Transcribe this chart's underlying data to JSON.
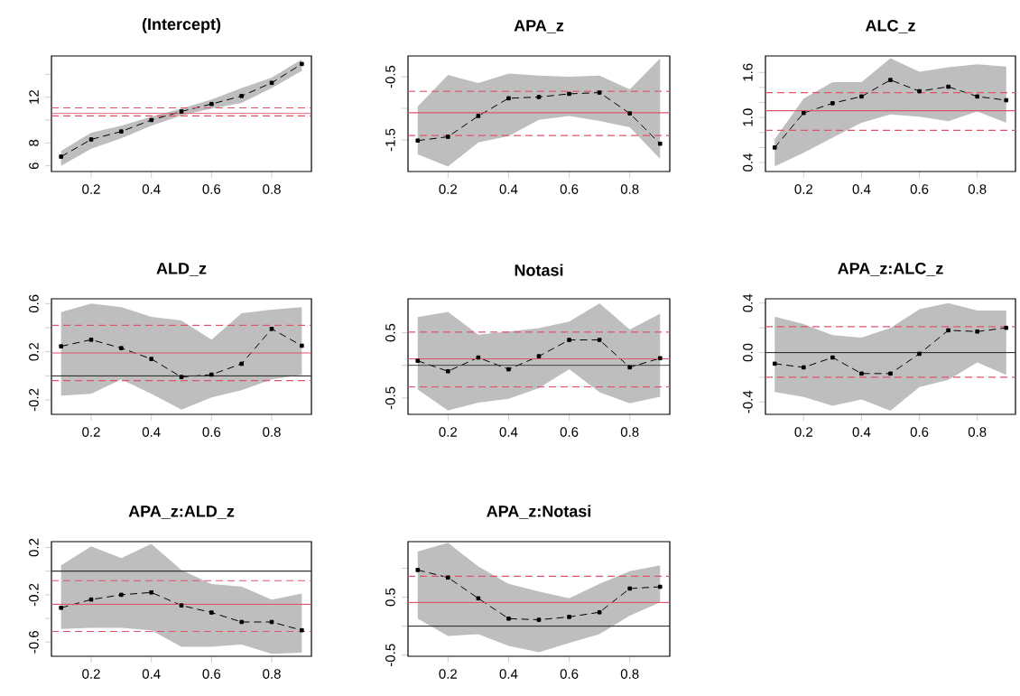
{
  "chart_data": [
    {
      "type": "line",
      "title": "(Intercept)",
      "x": [
        0.1,
        0.2,
        0.3,
        0.4,
        0.5,
        0.6,
        0.7,
        0.8,
        0.9
      ],
      "marker": "square",
      "line_style": "dashed",
      "series": [
        {
          "color": "#000000",
          "values": [
            6.8,
            8.3,
            9.0,
            10.0,
            10.75,
            11.4,
            12.1,
            13.25,
            14.9
          ],
          "lower": [
            6.0,
            7.5,
            8.4,
            9.5,
            10.4,
            11.0,
            11.5,
            12.8,
            14.3
          ],
          "upper": [
            7.3,
            8.9,
            9.5,
            10.3,
            11.0,
            11.8,
            12.8,
            13.7,
            15.3
          ]
        }
      ],
      "xlim": [
        0.068,
        0.932
      ],
      "ylim": [
        5.5,
        15.6
      ],
      "xticks": [
        0.2,
        0.4,
        0.6,
        0.8
      ],
      "yticks": [
        6,
        8,
        {
          "value": 10,
          "label": null
        },
        12,
        {
          "value": 14,
          "label": null
        }
      ],
      "ref_lines": [
        {
          "axis": "y",
          "value": 10.57,
          "color": "#df536b",
          "line_style": "solid"
        },
        {
          "axis": "y",
          "value": 11.06,
          "color": "#df536b",
          "line_style": "dashed"
        },
        {
          "axis": "y",
          "value": 10.36,
          "color": "#df536b",
          "line_style": "dashed"
        }
      ]
    },
    {
      "type": "line",
      "title": "APA_z",
      "x": [
        0.1,
        0.2,
        0.3,
        0.4,
        0.5,
        0.6,
        0.7,
        0.8,
        0.9
      ],
      "marker": "square",
      "line_style": "dashed",
      "series": [
        {
          "color": "#000000",
          "values": [
            -1.51,
            -1.45,
            -1.12,
            -0.84,
            -0.82,
            -0.77,
            -0.75,
            -1.08,
            -1.56
          ],
          "lower": [
            -1.73,
            -1.92,
            -1.54,
            -1.44,
            -1.18,
            -1.12,
            -1.2,
            -1.3,
            -1.8
          ],
          "upper": [
            -0.97,
            -0.47,
            -0.6,
            -0.45,
            -0.48,
            -0.5,
            -0.48,
            -0.7,
            -0.21
          ]
        }
      ],
      "xlim": [
        0.068,
        0.932
      ],
      "ylim": [
        -2.0,
        -0.17
      ],
      "xticks": [
        0.2,
        0.4,
        0.6,
        0.8
      ],
      "yticks": [
        -1.5,
        {
          "value": -1.0,
          "label": null
        },
        -0.5
      ],
      "ref_lines": [
        {
          "axis": "y",
          "value": -1.07,
          "color": "#df536b",
          "line_style": "solid"
        },
        {
          "axis": "y",
          "value": -0.73,
          "color": "#df536b",
          "line_style": "dashed"
        },
        {
          "axis": "y",
          "value": -1.43,
          "color": "#df536b",
          "line_style": "dashed"
        }
      ]
    },
    {
      "type": "line",
      "title": "ALC_z",
      "x": [
        0.1,
        0.2,
        0.3,
        0.4,
        0.5,
        0.6,
        0.7,
        0.8,
        0.9
      ],
      "marker": "square",
      "line_style": "dashed",
      "series": [
        {
          "color": "#000000",
          "values": [
            0.6,
            1.06,
            1.19,
            1.28,
            1.5,
            1.35,
            1.41,
            1.28,
            1.23
          ],
          "lower": [
            0.35,
            0.53,
            0.73,
            0.93,
            1.04,
            1.01,
            0.95,
            1.08,
            0.93
          ],
          "upper": [
            0.71,
            1.25,
            1.47,
            1.47,
            1.79,
            1.61,
            1.67,
            1.71,
            1.68
          ]
        }
      ],
      "xlim": [
        0.068,
        0.932
      ],
      "ylim": [
        0.28,
        1.82
      ],
      "xticks": [
        0.2,
        0.4,
        0.6,
        0.8
      ],
      "yticks": [
        0.4,
        {
          "value": 0.6,
          "label": null
        },
        {
          "value": 0.8,
          "label": null
        },
        {
          "value": 1.0,
          "label": "1.0"
        },
        {
          "value": 1.2,
          "label": null
        },
        {
          "value": 1.4,
          "label": null
        },
        1.6
      ],
      "ref_lines": [
        {
          "axis": "y",
          "value": 1.09,
          "color": "#df536b",
          "line_style": "solid"
        },
        {
          "axis": "y",
          "value": 1.33,
          "color": "#df536b",
          "line_style": "dashed"
        },
        {
          "axis": "y",
          "value": 0.83,
          "color": "#df536b",
          "line_style": "dashed"
        }
      ]
    },
    {
      "type": "line",
      "title": "ALD_z",
      "x": [
        0.1,
        0.2,
        0.3,
        0.4,
        0.5,
        0.6,
        0.7,
        0.8,
        0.9
      ],
      "marker": "square",
      "line_style": "dashed",
      "series": [
        {
          "color": "#000000",
          "values": [
            0.245,
            0.3,
            0.23,
            0.14,
            -0.01,
            0.01,
            0.1,
            0.39,
            0.25
          ],
          "lower": [
            -0.165,
            -0.15,
            -0.03,
            -0.15,
            -0.28,
            -0.18,
            -0.12,
            -0.03,
            0.01
          ],
          "upper": [
            0.53,
            0.6,
            0.57,
            0.49,
            0.46,
            0.3,
            0.52,
            0.55,
            0.57
          ]
        }
      ],
      "xlim": [
        0.068,
        0.932
      ],
      "ylim": [
        -0.32,
        0.64
      ],
      "xticks": [
        0.2,
        0.4,
        0.6,
        0.8
      ],
      "yticks": [
        -0.2,
        {
          "value": 0.0,
          "label": null
        },
        0.2,
        {
          "value": 0.4,
          "label": null
        },
        0.6
      ],
      "ref_lines": [
        {
          "axis": "y",
          "value": 0.19,
          "color": "#df536b",
          "line_style": "solid"
        },
        {
          "axis": "y",
          "value": 0.42,
          "color": "#df536b",
          "line_style": "dashed"
        },
        {
          "axis": "y",
          "value": -0.04,
          "color": "#df536b",
          "line_style": "dashed"
        },
        {
          "axis": "y",
          "value": 0,
          "color": "#333333",
          "line_style": "solid"
        }
      ]
    },
    {
      "type": "line",
      "title": "Notasi",
      "x": [
        0.1,
        0.2,
        0.3,
        0.4,
        0.5,
        0.6,
        0.7,
        0.8,
        0.9
      ],
      "marker": "square",
      "line_style": "dashed",
      "series": [
        {
          "color": "#000000",
          "values": [
            0.07,
            -0.09,
            0.12,
            -0.06,
            0.14,
            0.39,
            0.39,
            -0.03,
            0.11
          ],
          "lower": [
            -0.37,
            -0.69,
            -0.57,
            -0.51,
            -0.35,
            -0.06,
            -0.41,
            -0.58,
            -0.48
          ],
          "upper": [
            0.74,
            0.82,
            0.47,
            0.52,
            0.57,
            0.67,
            0.95,
            0.55,
            0.79
          ]
        }
      ],
      "xlim": [
        0.068,
        0.932
      ],
      "ylim": [
        -0.75,
        1.02
      ],
      "xticks": [
        0.2,
        0.4,
        0.6,
        0.8
      ],
      "yticks": [
        -0.5,
        {
          "value": 0.0,
          "label": null
        },
        0.5
      ],
      "ref_lines": [
        {
          "axis": "y",
          "value": 0.1,
          "color": "#df536b",
          "line_style": "solid"
        },
        {
          "axis": "y",
          "value": 0.51,
          "color": "#df536b",
          "line_style": "dashed"
        },
        {
          "axis": "y",
          "value": -0.33,
          "color": "#df536b",
          "line_style": "dashed"
        },
        {
          "axis": "y",
          "value": 0,
          "color": "#333333",
          "line_style": "solid"
        }
      ]
    },
    {
      "type": "line",
      "title": "APA_z:ALC_z",
      "x": [
        0.1,
        0.2,
        0.3,
        0.4,
        0.5,
        0.6,
        0.7,
        0.8,
        0.9
      ],
      "marker": "square",
      "line_style": "dashed",
      "series": [
        {
          "color": "#000000",
          "values": [
            -0.09,
            -0.12,
            -0.04,
            -0.17,
            -0.17,
            -0.01,
            0.18,
            0.17,
            0.2
          ],
          "lower": [
            -0.32,
            -0.36,
            -0.43,
            -0.38,
            -0.47,
            -0.28,
            -0.22,
            -0.08,
            -0.18
          ],
          "upper": [
            0.29,
            0.23,
            0.14,
            0.12,
            0.2,
            0.35,
            0.4,
            0.34,
            0.34
          ]
        }
      ],
      "xlim": [
        0.068,
        0.932
      ],
      "ylim": [
        -0.5,
        0.435
      ],
      "xticks": [
        0.2,
        0.4,
        0.6,
        0.8
      ],
      "yticks": [
        -0.4,
        {
          "value": -0.2,
          "label": null
        },
        {
          "value": 0.0,
          "label": "0.0"
        },
        {
          "value": 0.2,
          "label": null
        },
        0.4
      ],
      "ref_lines": [
        {
          "axis": "y",
          "value": 0.21,
          "color": "#df536b",
          "line_style": "dashed"
        },
        {
          "axis": "y",
          "value": -0.2,
          "color": "#df536b",
          "line_style": "dashed"
        },
        {
          "axis": "y",
          "value": 0,
          "color": "#333333",
          "line_style": "solid"
        }
      ]
    },
    {
      "type": "line",
      "title": "APA_z:ALD_z",
      "x": [
        0.1,
        0.2,
        0.3,
        0.4,
        0.5,
        0.6,
        0.7,
        0.8,
        0.9
      ],
      "marker": "square",
      "line_style": "dashed",
      "series": [
        {
          "color": "#000000",
          "values": [
            -0.31,
            -0.24,
            -0.2,
            -0.18,
            -0.29,
            -0.35,
            -0.43,
            -0.43,
            -0.5
          ],
          "lower": [
            -0.49,
            -0.48,
            -0.48,
            -0.5,
            -0.64,
            -0.64,
            -0.62,
            -0.7,
            -0.69
          ],
          "upper": [
            0.05,
            0.21,
            0.11,
            0.23,
            0.01,
            -0.11,
            -0.13,
            -0.24,
            -0.19
          ]
        }
      ],
      "xlim": [
        0.068,
        0.932
      ],
      "ylim": [
        -0.72,
        0.25
      ],
      "xticks": [
        0.2,
        0.4,
        0.6,
        0.8
      ],
      "yticks": [
        -0.6,
        {
          "value": -0.4,
          "label": null
        },
        -0.2,
        {
          "value": 0.0,
          "label": null
        },
        0.2
      ],
      "ref_lines": [
        {
          "axis": "y",
          "value": -0.28,
          "color": "#df536b",
          "line_style": "solid"
        },
        {
          "axis": "y",
          "value": -0.08,
          "color": "#df536b",
          "line_style": "dashed"
        },
        {
          "axis": "y",
          "value": -0.51,
          "color": "#df536b",
          "line_style": "dashed"
        },
        {
          "axis": "y",
          "value": 0,
          "color": "#333333",
          "line_style": "solid"
        }
      ]
    },
    {
      "type": "line",
      "title": "APA_z:Notasi",
      "x": [
        0.1,
        0.2,
        0.3,
        0.4,
        0.5,
        0.6,
        0.7,
        0.8,
        0.9
      ],
      "marker": "square",
      "line_style": "dashed",
      "series": [
        {
          "color": "#000000",
          "values": [
            0.97,
            0.84,
            0.48,
            0.13,
            0.11,
            0.16,
            0.24,
            0.65,
            0.68
          ],
          "lower": [
            0.13,
            -0.17,
            -0.14,
            -0.34,
            -0.45,
            -0.29,
            -0.14,
            0.18,
            0.41
          ],
          "upper": [
            1.29,
            1.44,
            1.03,
            0.73,
            0.6,
            0.48,
            0.73,
            0.95,
            1.05
          ]
        }
      ],
      "xlim": [
        0.068,
        0.932
      ],
      "ylim": [
        -0.52,
        1.46
      ],
      "xticks": [
        0.2,
        0.4,
        0.6,
        0.8
      ],
      "yticks": [
        -0.5,
        {
          "value": 0.0,
          "label": null
        },
        0.5,
        {
          "value": 1.0,
          "label": null
        }
      ],
      "ref_lines": [
        {
          "axis": "y",
          "value": 0.41,
          "color": "#df536b",
          "line_style": "solid"
        },
        {
          "axis": "y",
          "value": 0.86,
          "color": "#df536b",
          "line_style": "dashed"
        },
        {
          "axis": "y",
          "value": 0,
          "color": "#333333",
          "line_style": "solid"
        }
      ]
    }
  ]
}
